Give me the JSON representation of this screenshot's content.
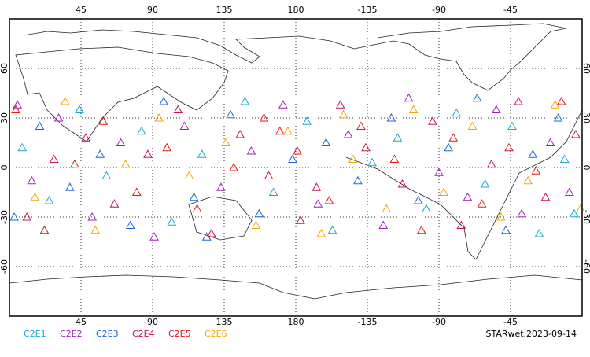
{
  "chart_data": {
    "type": "scatter",
    "xlim": [
      0,
      360
    ],
    "ylim": [
      -90,
      90
    ],
    "xticks": [
      45,
      90,
      135,
      180,
      {
        "value": 225,
        "label": "-135"
      },
      {
        "value": 270,
        "label": "-90"
      },
      {
        "value": 315,
        "label": "-45"
      }
    ],
    "yticks": [
      60,
      30,
      0,
      -30,
      -60
    ],
    "grid": true,
    "series": [
      {
        "name": "C2E1",
        "color": "#1aa8d0",
        "x": [
          8,
          25,
          44,
          61,
          83,
          102,
          121,
          148,
          166,
          187,
          203,
          228,
          244,
          262,
          281,
          299,
          316,
          333,
          349,
          355
        ],
        "values": [
          12,
          -20,
          35,
          -5,
          22,
          -33,
          8,
          40,
          -15,
          28,
          -38,
          3,
          18,
          -25,
          33,
          -10,
          25,
          -40,
          5,
          -28
        ]
      },
      {
        "name": "C2E2",
        "color": "#a020b8",
        "x": [
          14,
          31,
          52,
          70,
          91,
          110,
          133,
          152,
          172,
          194,
          213,
          235,
          251,
          270,
          288,
          306,
          322,
          340,
          352,
          5
        ],
        "values": [
          -8,
          30,
          -30,
          15,
          -42,
          25,
          -12,
          10,
          38,
          -22,
          20,
          -35,
          42,
          -3,
          -18,
          35,
          -28,
          15,
          -15,
          38
        ]
      },
      {
        "name": "C2E3",
        "color": "#1e64dc",
        "x": [
          19,
          38,
          57,
          76,
          97,
          116,
          139,
          157,
          178,
          199,
          219,
          240,
          257,
          276,
          294,
          312,
          329,
          345,
          3,
          124
        ],
        "values": [
          25,
          -12,
          8,
          -35,
          40,
          -18,
          32,
          -28,
          5,
          15,
          -8,
          30,
          -20,
          12,
          42,
          -38,
          8,
          30,
          -30,
          -42
        ]
      },
      {
        "name": "C2E4",
        "color": "#c81448",
        "x": [
          11,
          28,
          48,
          66,
          87,
          106,
          127,
          145,
          163,
          183,
          208,
          224,
          247,
          266,
          284,
          303,
          320,
          337,
          356,
          193
        ],
        "values": [
          -30,
          5,
          18,
          -22,
          8,
          35,
          -40,
          20,
          -5,
          -32,
          38,
          12,
          -10,
          28,
          -35,
          2,
          40,
          -18,
          20,
          -12
        ]
      },
      {
        "name": "C2E5",
        "color": "#e41818",
        "x": [
          4,
          22,
          41,
          59,
          80,
          99,
          118,
          141,
          160,
          181,
          201,
          221,
          242,
          259,
          279,
          297,
          314,
          331,
          347,
          170
        ],
        "values": [
          35,
          -38,
          2,
          28,
          -15,
          12,
          -25,
          0,
          30,
          10,
          -20,
          25,
          5,
          -38,
          18,
          -22,
          12,
          -2,
          40,
          22
        ]
      },
      {
        "name": "C2E6",
        "color": "#f0a800",
        "x": [
          16,
          35,
          54,
          73,
          94,
          113,
          136,
          155,
          175,
          196,
          216,
          237,
          254,
          273,
          291,
          309,
          326,
          343,
          359,
          210
        ],
        "values": [
          -18,
          40,
          -38,
          2,
          30,
          -5,
          15,
          -35,
          22,
          -40,
          5,
          -25,
          35,
          -15,
          25,
          -30,
          -8,
          38,
          -25,
          32
        ]
      }
    ],
    "source": "STARwet.2023-09-14"
  }
}
